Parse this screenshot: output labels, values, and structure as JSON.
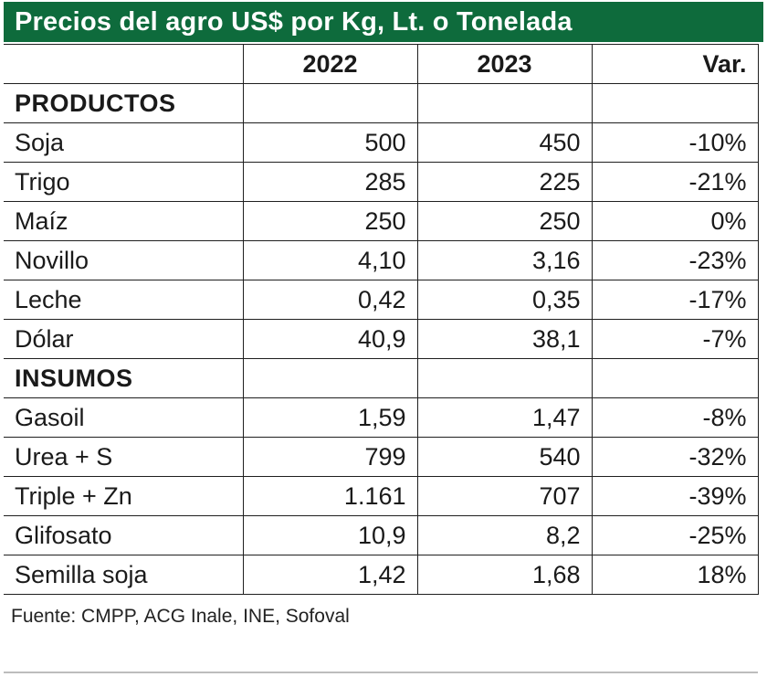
{
  "title": "Precios del agro US$ por Kg, Lt. o Tonelada",
  "colors": {
    "title_bg": "#0e6b3c",
    "title_text": "#ffffff"
  },
  "columns": [
    "",
    "2022",
    "2023",
    "Var."
  ],
  "sections": [
    {
      "label": "PRODUCTOS",
      "rows": [
        {
          "name": "Soja",
          "y2022": "500",
          "y2023": "450",
          "var": "-10%"
        },
        {
          "name": "Trigo",
          "y2022": "285",
          "y2023": "225",
          "var": "-21%"
        },
        {
          "name": "Maíz",
          "y2022": "250",
          "y2023": "250",
          "var": "0%"
        },
        {
          "name": "Novillo",
          "y2022": "4,10",
          "y2023": "3,16",
          "var": "-23%"
        },
        {
          "name": "Leche",
          "y2022": "0,42",
          "y2023": "0,35",
          "var": "-17%"
        },
        {
          "name": "Dólar",
          "y2022": "40,9",
          "y2023": "38,1",
          "var": "-7%"
        }
      ]
    },
    {
      "label": "INSUMOS",
      "rows": [
        {
          "name": "Gasoil",
          "y2022": "1,59",
          "y2023": "1,47",
          "var": "-8%"
        },
        {
          "name": "Urea + S",
          "y2022": "799",
          "y2023": "540",
          "var": "-32%"
        },
        {
          "name": "Triple + Zn",
          "y2022": "1.161",
          "y2023": "707",
          "var": "-39%"
        },
        {
          "name": "Glifosato",
          "y2022": "10,9",
          "y2023": "8,2",
          "var": "-25%"
        },
        {
          "name": "Semilla soja",
          "y2022": "1,42",
          "y2023": "1,68",
          "var": "18%"
        }
      ]
    }
  ],
  "source": "Fuente: CMPP, ACG Inale, INE, Sofoval"
}
